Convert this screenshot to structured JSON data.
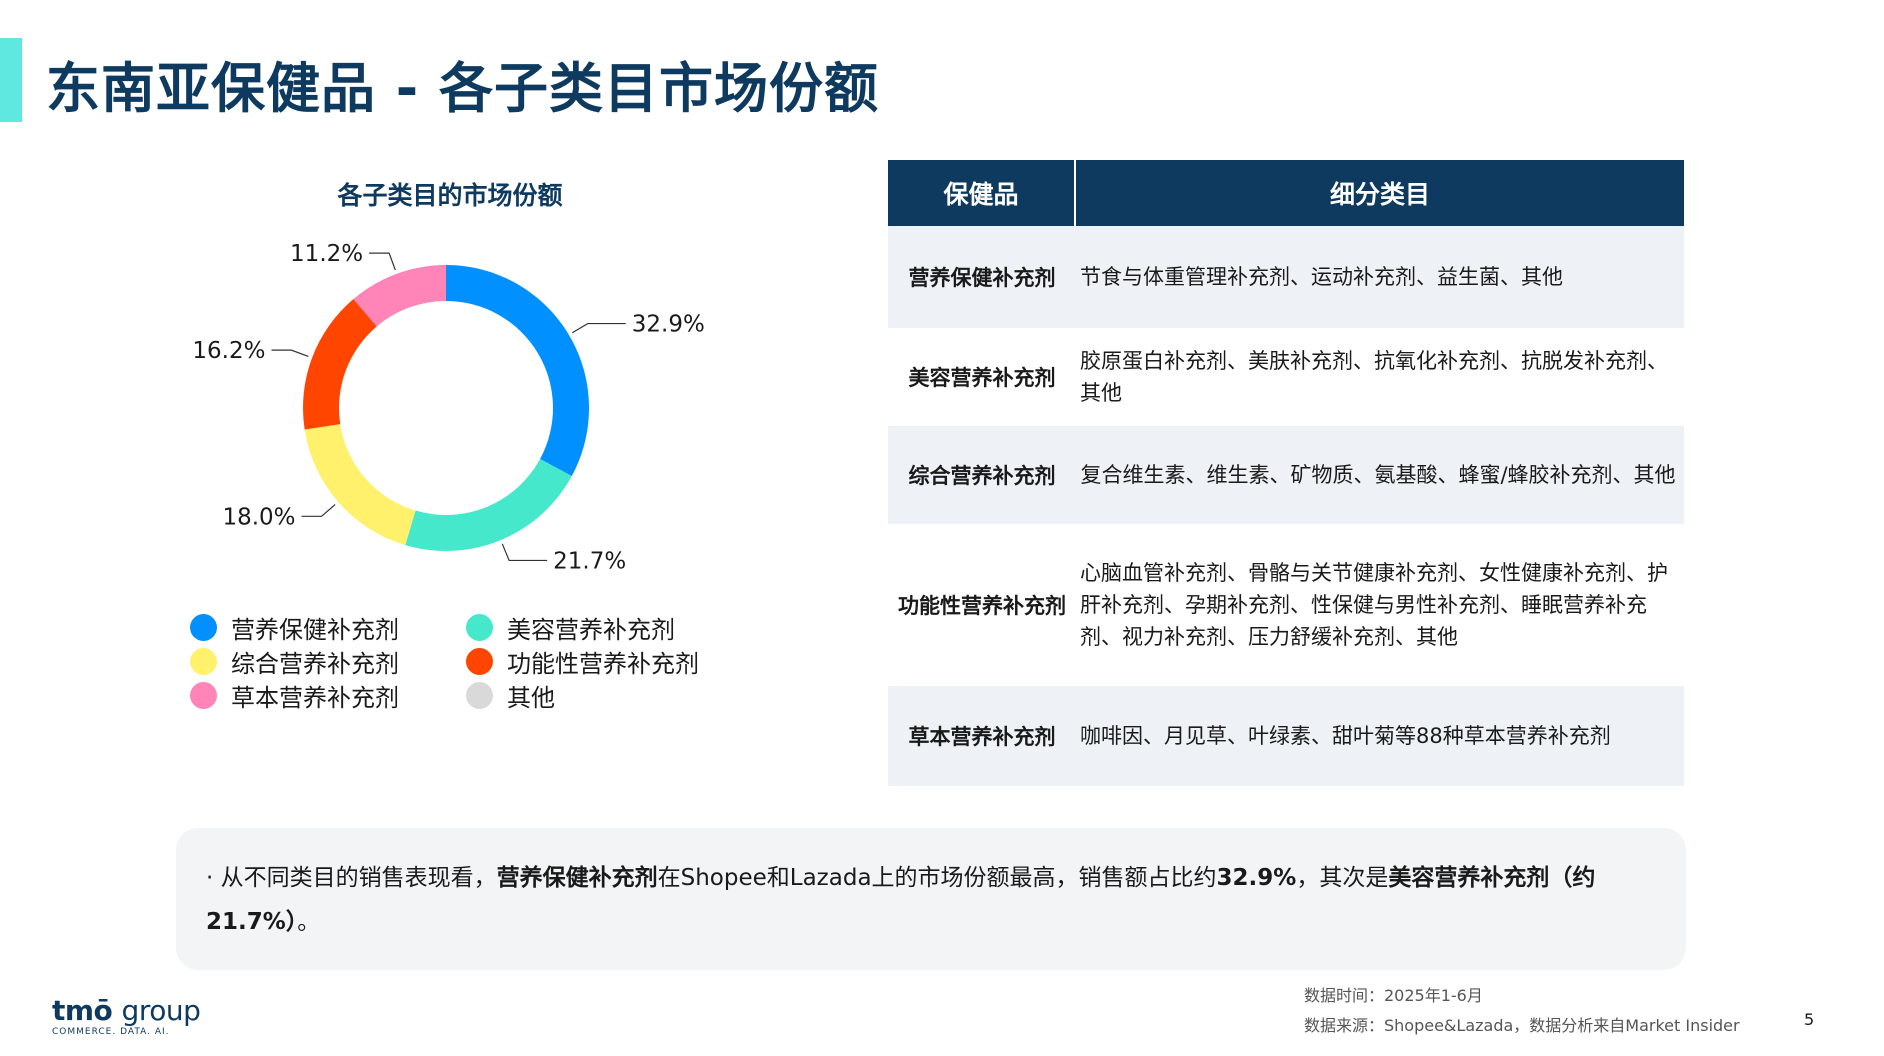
{
  "page": {
    "title": "东南亚保健品 - 各子类目市场份额",
    "page_number": "5",
    "accent_color": "#5ee8df",
    "brand_color": "#0f3a5f"
  },
  "chart_data": {
    "type": "pie",
    "title": "各子类目的市场份额",
    "donut": true,
    "categories": [
      "营养保健补充剂",
      "美容营养补充剂",
      "综合营养补充剂",
      "功能性营养补充剂",
      "草本营养补充剂",
      "其他"
    ],
    "values": [
      32.9,
      21.7,
      18.0,
      16.2,
      11.2,
      0
    ],
    "value_labels": [
      "32.9%",
      "21.7%",
      "18.0%",
      "16.2%",
      "11.2%",
      ""
    ],
    "colors": [
      "#0090ff",
      "#46e8cc",
      "#fff16b",
      "#ff4500",
      "#ff85b8",
      "#d9d9d9"
    ],
    "legend_placement": "bottom"
  },
  "legend": [
    {
      "label": "营养保健补充剂",
      "color": "#0090ff"
    },
    {
      "label": "美容营养补充剂",
      "color": "#46e8cc"
    },
    {
      "label": "综合营养补充剂",
      "color": "#fff16b"
    },
    {
      "label": "功能性营养补充剂",
      "color": "#ff4500"
    },
    {
      "label": "草本营养补充剂",
      "color": "#ff85b8"
    },
    {
      "label": "其他",
      "color": "#d9d9d9"
    }
  ],
  "table": {
    "headers": [
      "保健品",
      "细分类目"
    ],
    "rows": [
      {
        "category": "营养保健补充剂",
        "items": "节食与体重管理补充剂、运动补充剂、益生菌、其他"
      },
      {
        "category": "美容营养补充剂",
        "items": "胶原蛋白补充剂、美肤补充剂、抗氧化补充剂、抗脱发补充剂、其他"
      },
      {
        "category": "综合营养补充剂",
        "items": "复合维生素、维生素、矿物质、氨基酸、蜂蜜/蜂胶补充剂、其他"
      },
      {
        "category": "功能性营养补充剂",
        "items": "心脑血管补充剂、骨骼与关节健康补充剂、女性健康补充剂、护肝补充剂、孕期补充剂、性保健与男性补充剂、睡眠营养补充剂、视力补充剂、压力舒缓补充剂、其他"
      },
      {
        "category": "草本营养补充剂",
        "items": "咖啡因、月见草、叶绿素、甜叶菊等88种草本营养补充剂"
      }
    ]
  },
  "summary": {
    "bullet": "·",
    "part1": "从不同类目的销售表现看，",
    "bold1": "营养保健补充剂",
    "part2": "在Shopee和Lazada上的市场份额最高，销售额占比约",
    "bold2": "32.9%",
    "part3": "，其次是",
    "bold3": "美容营养补充剂（约21.7%）",
    "part4": "。"
  },
  "footer": {
    "data_time": "数据时间：2025年1-6月",
    "data_source": "数据来源：Shopee&Lazada，数据分析来自Market Insider",
    "logo_main": "tmō",
    "logo_group": "group",
    "logo_sub": "COMMERCE. DATA. AI."
  }
}
